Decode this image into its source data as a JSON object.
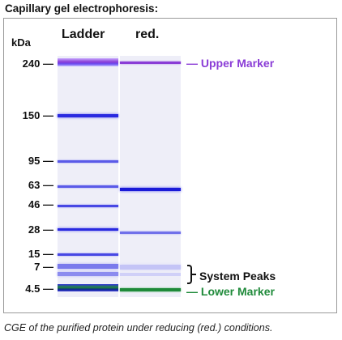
{
  "title": "Capillary gel electrophoresis:",
  "unit": "kDa",
  "lanes": {
    "ladder": "Ladder",
    "reduced": "red."
  },
  "markers": [
    "240",
    "150",
    "95",
    "63",
    "46",
    "28",
    "15",
    "7",
    "4.5"
  ],
  "annotations": {
    "upper_marker": "Upper Marker",
    "system_peaks": "System Peaks",
    "lower_marker": "Lower Marker"
  },
  "caption": "CGE of the purified protein under reducing (red.) conditions.",
  "colors": {
    "band_blue": "#2a2ae0",
    "upper_marker": "#8a3cd6",
    "lower_marker": "#1f8a3a",
    "lane_background": "#eeeef8"
  }
}
